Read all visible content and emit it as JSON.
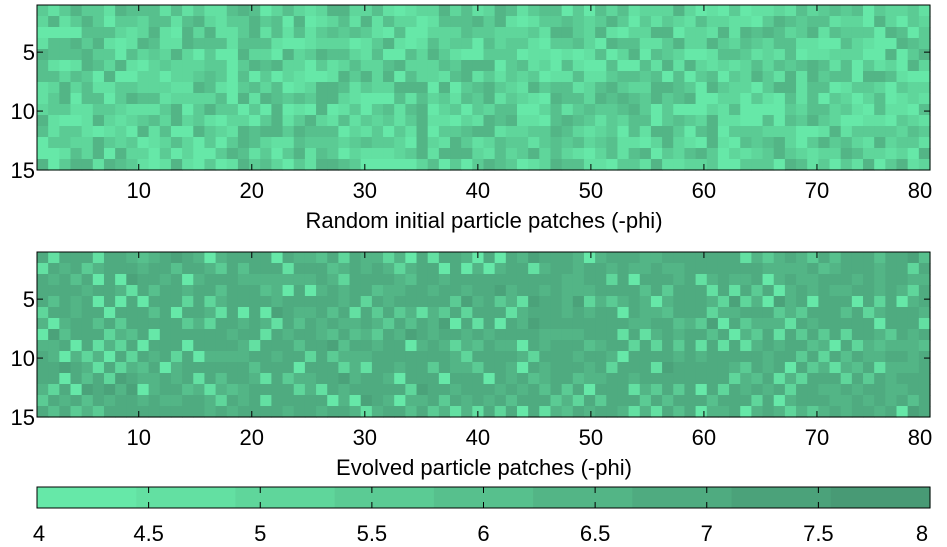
{
  "chart_data": [
    {
      "type": "heatmap",
      "xlabel": "Random initial particle patches (-phi)",
      "ylabel": "",
      "x_range": [
        1,
        80
      ],
      "y_range": [
        1,
        15
      ],
      "x_ticks": [
        10,
        20,
        30,
        40,
        50,
        60,
        70,
        80
      ],
      "y_ticks": [
        5,
        10,
        15
      ],
      "pattern": "random",
      "value_range": [
        4,
        8
      ],
      "rows": 15,
      "cols": 80
    },
    {
      "type": "heatmap",
      "xlabel": "Evolved particle patches (-phi)",
      "ylabel": "",
      "x_range": [
        1,
        80
      ],
      "y_range": [
        1,
        15
      ],
      "x_ticks": [
        10,
        20,
        30,
        40,
        50,
        60,
        70,
        80
      ],
      "y_ticks": [
        5,
        10,
        15
      ],
      "pattern": "checkerboard",
      "value_range": [
        4,
        8
      ],
      "rows": 15,
      "cols": 80
    }
  ],
  "colorbar": {
    "ticks": [
      "4",
      "4.5",
      "5",
      "5.5",
      "6",
      "6.5",
      "7",
      "7.5",
      "8"
    ],
    "colors": [
      "#66e8a8",
      "#63e0a2",
      "#5fd69b",
      "#5bcb94",
      "#57c08d",
      "#53b586",
      "#4fab80",
      "#4ba27a",
      "#489a75"
    ]
  }
}
